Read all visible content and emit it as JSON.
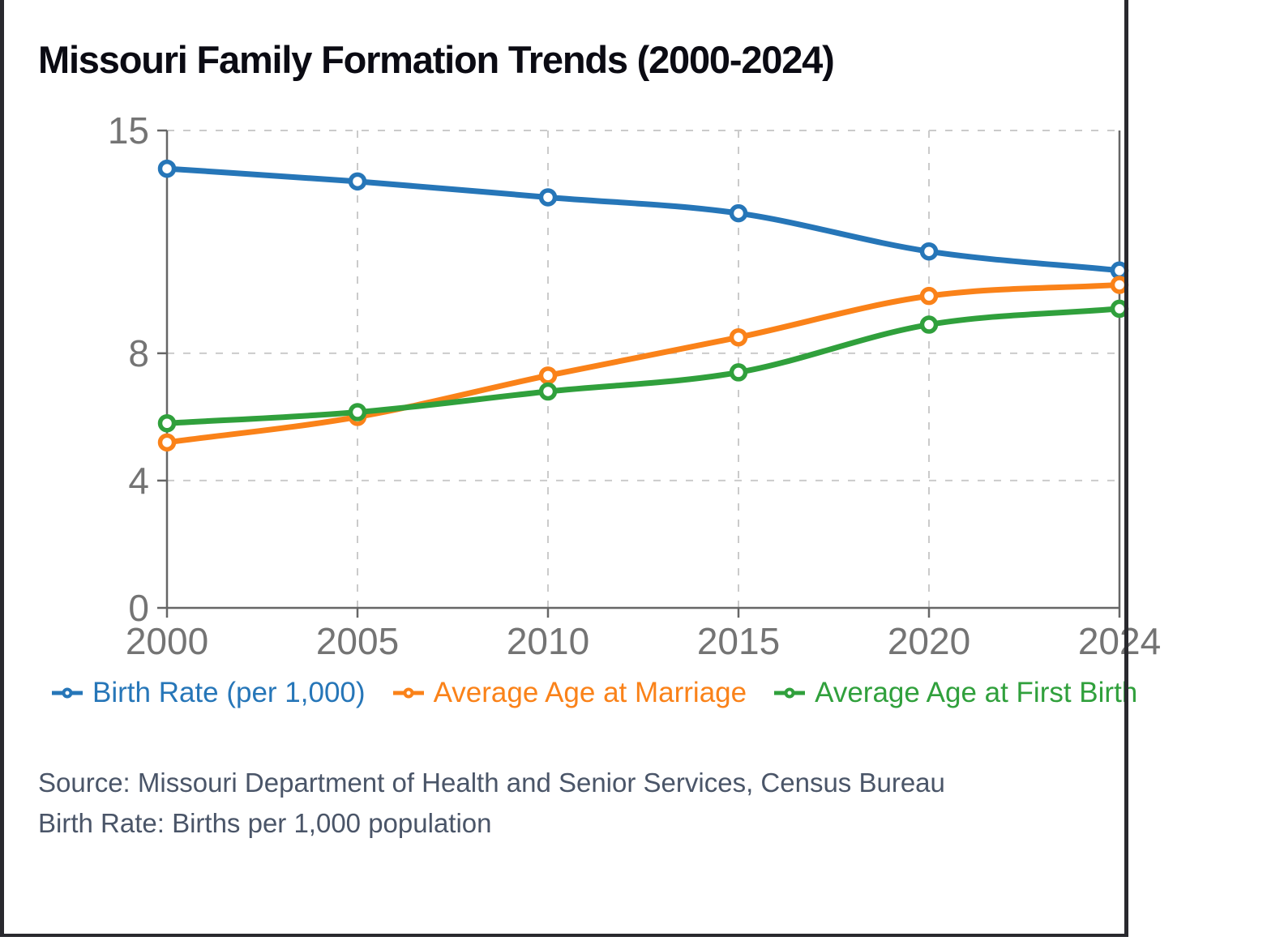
{
  "window": {
    "border_color": "#29292e",
    "background": "#ffffff"
  },
  "title": "Missouri Family Formation Trends (2000-2024)",
  "chart_data": {
    "type": "line",
    "title": "Missouri Family Formation Trends (2000-2024)",
    "categories": [
      "2000",
      "2005",
      "2010",
      "2015",
      "2020",
      "2024"
    ],
    "y_ticks": [
      0,
      4,
      8,
      15
    ],
    "ylim": [
      0,
      15
    ],
    "grid": true,
    "grid_style": "dashed",
    "legend_position": "bottom",
    "xlabel": "",
    "ylabel": "",
    "series": [
      {
        "name": "Birth Rate (per 1,000)",
        "color": "#2676b8",
        "values": [
          13.8,
          13.4,
          12.9,
          12.4,
          11.2,
          10.6
        ]
      },
      {
        "name": "Average Age at Marriage",
        "color": "#fa8219",
        "values": [
          5.2,
          6.0,
          7.3,
          8.5,
          9.8,
          10.15
        ]
      },
      {
        "name": "Average Age at First Birth",
        "color": "#30a03c",
        "values": [
          5.8,
          6.15,
          6.8,
          7.4,
          8.9,
          9.4
        ]
      }
    ],
    "style": {
      "axis_color": "#666666",
      "tick_label_color": "#747474",
      "grid_color": "#cbcbcb",
      "marker": "hollow-circle",
      "title_color": "#0b0b13"
    }
  },
  "footnotes": {
    "source": "Source: Missouri Department of Health and Senior Services, Census Bureau",
    "note": "Birth Rate: Births per 1,000 population"
  }
}
